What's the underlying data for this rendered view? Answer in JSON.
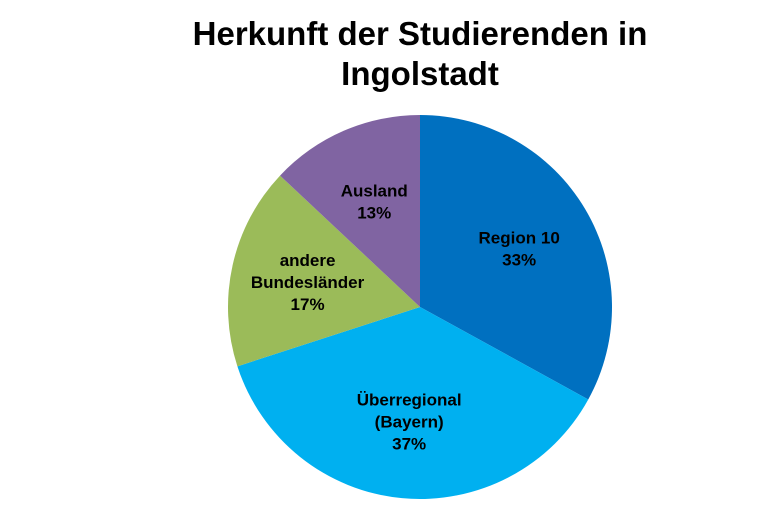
{
  "chart_data": {
    "type": "pie",
    "title": [
      "Herkunft der Studierenden in",
      "Ingolstadt"
    ],
    "slices": [
      {
        "label": [
          "Region 10",
          "33%"
        ],
        "value": 33,
        "color": "#0070C0"
      },
      {
        "label": [
          "Überregional",
          "(Bayern)",
          "37%"
        ],
        "value": 37,
        "color": "#00B0F0"
      },
      {
        "label": [
          "andere",
          "Bundesländer",
          "17%"
        ],
        "value": 17,
        "color": "#9BBB59"
      },
      {
        "label": [
          "Ausland",
          "13%"
        ],
        "value": 13,
        "color": "#8064A2"
      }
    ],
    "start": "12 o'clock",
    "direction": "clockwise",
    "legend": "none"
  }
}
